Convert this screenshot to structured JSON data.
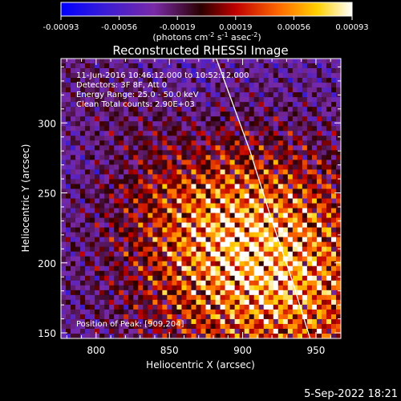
{
  "colorbar": {
    "ticks": [
      "-0.00093",
      "-0.00056",
      "-0.00019",
      "0.00019",
      "0.00056",
      "0.00093"
    ],
    "units_prefix": "(photons cm",
    "units_exp1": "-2",
    "units_mid": " s",
    "units_exp2": "-1",
    "units_mid2": " asec",
    "units_exp3": "-2",
    "units_suffix": ")"
  },
  "chart_data": {
    "type": "heatmap",
    "title": "Reconstructed RHESSI Image",
    "xlabel": "Heliocentric X (arcsec)",
    "ylabel": "Heliocentric Y (arcsec)",
    "xlim": [
      776,
      967
    ],
    "ylim": [
      146,
      346
    ],
    "xticks": [
      800,
      850,
      900,
      950
    ],
    "yticks": [
      150,
      200,
      250,
      300
    ],
    "color_range": [
      -0.00093,
      0.00093
    ],
    "colormap": "rainbow-to-hot (blue, purple, red, orange, yellow, white)",
    "limb": [
      [
        882,
        346
      ],
      [
        905,
        280
      ],
      [
        920,
        230
      ],
      [
        933,
        190
      ],
      [
        946,
        146
      ]
    ],
    "annotations": [
      "11-Jun-2016 10:46:12.000 to 10:52:12.000",
      "Detectors: 3F 8F, Att 0",
      "Energy Range: 25.0 - 50.0 keV",
      "Clean     Total counts: 2.90E+03"
    ],
    "peak_label": "Position of Peak:  [909,204]",
    "peak": [
      909,
      204
    ]
  },
  "footer": {
    "date": "5-Sep-2022 18:21"
  }
}
